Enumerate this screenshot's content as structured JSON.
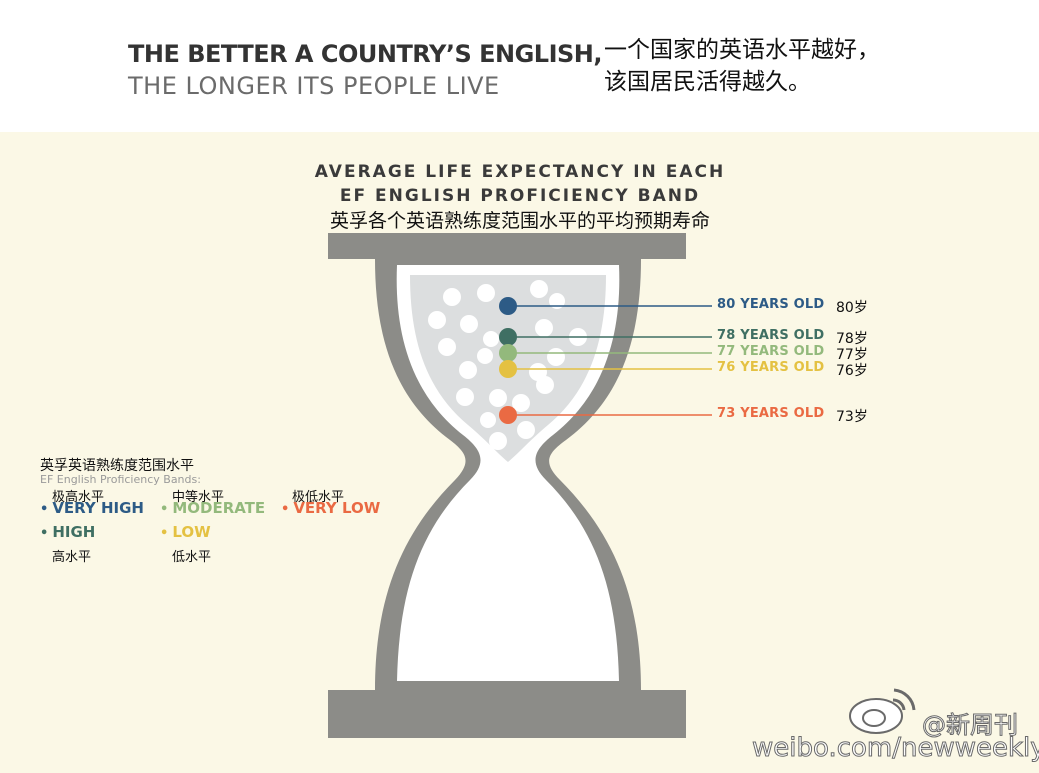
{
  "headline": {
    "line1": "THE BETTER A COUNTRY’S ENGLISH,",
    "line2": "THE LONGER ITS PEOPLE LIVE",
    "cn_line1": "一个国家的英语水平越好，",
    "cn_line2": "该国居民活得越久。"
  },
  "chart": {
    "title_line1": "AVERAGE LIFE EXPECTANCY IN EACH",
    "title_line2": "EF ENGLISH PROFICIENCY BAND",
    "title_cn": "英孚各个英语熟练度范围水平的平均预期寿命"
  },
  "chart_data": {
    "type": "other",
    "title": "AVERAGE LIFE EXPECTANCY IN EACH EF ENGLISH PROFICIENCY BAND",
    "series": [
      {
        "band": "VERY HIGH",
        "age": 80,
        "label": "80 YEARS OLD",
        "label_cn": "80岁",
        "color": "#2d5b86"
      },
      {
        "band": "HIGH",
        "age": 78,
        "label": "78 YEARS OLD",
        "label_cn": "78岁",
        "color": "#3f6f63"
      },
      {
        "band": "MODERATE",
        "age": 77,
        "label": "77 YEARS OLD",
        "label_cn": "77岁",
        "color": "#93b97c"
      },
      {
        "band": "LOW",
        "age": 76,
        "label": "76 YEARS OLD",
        "label_cn": "76岁",
        "color": "#e4c142"
      },
      {
        "band": "VERY LOW",
        "age": 73,
        "label": "73 YEARS OLD",
        "label_cn": "73岁",
        "color": "#ea6a43"
      }
    ]
  },
  "legend": {
    "title_cn": "英孚英语熟练度范围水平",
    "title_en": "EF English Proficiency Bands:",
    "items": [
      {
        "label": "VERY HIGH",
        "cn": "极高水平",
        "color": "#2d5b86"
      },
      {
        "label": "HIGH",
        "cn": "高水平",
        "color": "#3f6f63"
      },
      {
        "label": "MODERATE",
        "cn": "中等水平",
        "color": "#93b97c"
      },
      {
        "label": "LOW",
        "cn": "低水平",
        "color": "#e4c142"
      },
      {
        "label": "VERY LOW",
        "cn": "极低水平",
        "color": "#ea6a43"
      }
    ],
    "dot_glyph": "•"
  },
  "watermark": {
    "handle": "@新周刊",
    "url": "weibo.com/newweekly"
  },
  "colors": {
    "panel_bg": "#fbf8e6",
    "hourglass_frame": "#8c8c88",
    "sand": "#dcdedf"
  }
}
